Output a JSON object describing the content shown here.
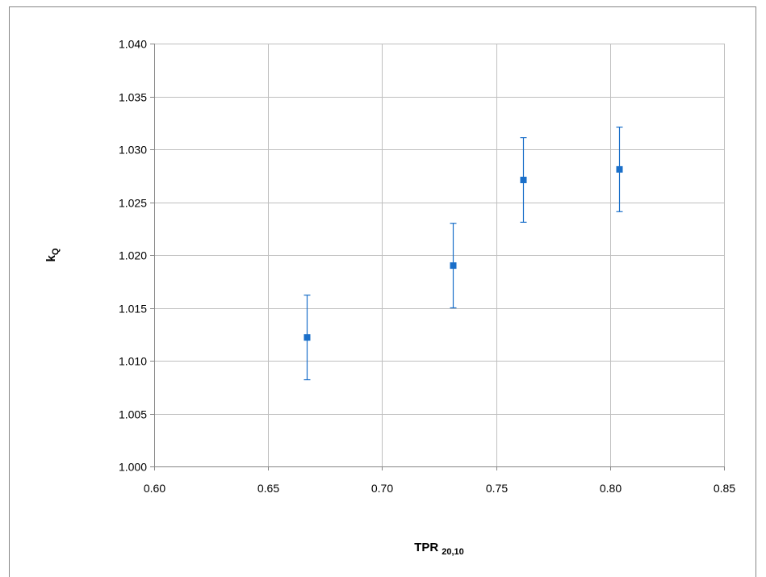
{
  "chart_data": {
    "type": "scatter",
    "title": "",
    "xlabel": "TPR",
    "xlabel_subscript": "20,10",
    "ylabel": "k",
    "ylabel_subscript": "Q",
    "xlim": [
      0.6,
      0.85
    ],
    "ylim": [
      1.0,
      1.04
    ],
    "xticks": [
      0.6,
      0.65,
      0.7,
      0.75,
      0.8,
      0.85
    ],
    "yticks": [
      1.0,
      1.005,
      1.01,
      1.015,
      1.02,
      1.025,
      1.03,
      1.035,
      1.04
    ],
    "x_tick_decimals": 2,
    "y_tick_decimals": 3,
    "grid": true,
    "legend": "none",
    "series": [
      {
        "color": "#1a6fc9",
        "marker": "square",
        "points": [
          {
            "x": 0.667,
            "y": 1.0122,
            "err": 0.004
          },
          {
            "x": 0.731,
            "y": 1.019,
            "err": 0.004
          },
          {
            "x": 0.762,
            "y": 1.0271,
            "err": 0.004
          },
          {
            "x": 0.804,
            "y": 1.0281,
            "err": 0.004
          }
        ]
      }
    ],
    "colors": {
      "grid": "#bfbfbf",
      "axis": "#878787",
      "frame": "#878787",
      "errorbar": "#1a6fc9"
    }
  }
}
